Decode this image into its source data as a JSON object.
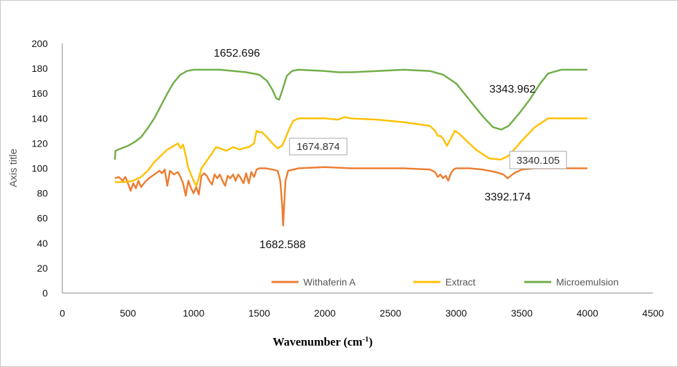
{
  "chart_data": {
    "type": "line",
    "title": "",
    "xlabel": "Wavenumber (cm",
    "xlabel_sup": "-1",
    "xlabel_close": ")",
    "ylabel": "Axis title",
    "xlim": [
      0,
      4500
    ],
    "ylim": [
      0,
      200
    ],
    "x_ticks": [
      "0",
      "500",
      "1000",
      "1500",
      "2000",
      "2500",
      "3000",
      "3500",
      "4000",
      "4500"
    ],
    "y_ticks": [
      "0",
      "20",
      "40",
      "60",
      "80",
      "100",
      "120",
      "140",
      "160",
      "180",
      "200"
    ],
    "grid": false,
    "legend_position": "bottom-right",
    "series": [
      {
        "name": "Withaferin A",
        "color": "#ED7D31",
        "points": [
          [
            400,
            92
          ],
          [
            430,
            93
          ],
          [
            460,
            90
          ],
          [
            480,
            93
          ],
          [
            500,
            88
          ],
          [
            520,
            82
          ],
          [
            540,
            88
          ],
          [
            560,
            84
          ],
          [
            580,
            90
          ],
          [
            600,
            85
          ],
          [
            630,
            89
          ],
          [
            660,
            92
          ],
          [
            700,
            95
          ],
          [
            740,
            98
          ],
          [
            760,
            96
          ],
          [
            780,
            99
          ],
          [
            800,
            86
          ],
          [
            820,
            98
          ],
          [
            850,
            95
          ],
          [
            880,
            97
          ],
          [
            900,
            93
          ],
          [
            920,
            88
          ],
          [
            940,
            78
          ],
          [
            960,
            90
          ],
          [
            980,
            84
          ],
          [
            1000,
            80
          ],
          [
            1020,
            85
          ],
          [
            1040,
            79
          ],
          [
            1060,
            94
          ],
          [
            1080,
            96
          ],
          [
            1100,
            94
          ],
          [
            1120,
            90
          ],
          [
            1140,
            87
          ],
          [
            1160,
            95
          ],
          [
            1180,
            92
          ],
          [
            1200,
            95
          ],
          [
            1220,
            90
          ],
          [
            1240,
            86
          ],
          [
            1260,
            94
          ],
          [
            1280,
            92
          ],
          [
            1300,
            95
          ],
          [
            1320,
            90
          ],
          [
            1340,
            95
          ],
          [
            1360,
            92
          ],
          [
            1380,
            88
          ],
          [
            1400,
            96
          ],
          [
            1420,
            88
          ],
          [
            1440,
            97
          ],
          [
            1460,
            93
          ],
          [
            1480,
            99
          ],
          [
            1500,
            100
          ],
          [
            1550,
            100
          ],
          [
            1600,
            99
          ],
          [
            1640,
            98
          ],
          [
            1660,
            90
          ],
          [
            1675,
            70
          ],
          [
            1682,
            54
          ],
          [
            1690,
            70
          ],
          [
            1700,
            90
          ],
          [
            1720,
            98
          ],
          [
            1800,
            100
          ],
          [
            2000,
            101
          ],
          [
            2200,
            100
          ],
          [
            2400,
            100
          ],
          [
            2600,
            100
          ],
          [
            2800,
            99
          ],
          [
            2840,
            97
          ],
          [
            2860,
            93
          ],
          [
            2880,
            95
          ],
          [
            2900,
            92
          ],
          [
            2920,
            94
          ],
          [
            2940,
            90
          ],
          [
            2960,
            96
          ],
          [
            2980,
            99
          ],
          [
            3000,
            100
          ],
          [
            3100,
            100
          ],
          [
            3200,
            99
          ],
          [
            3300,
            97
          ],
          [
            3360,
            95
          ],
          [
            3392,
            92
          ],
          [
            3440,
            96
          ],
          [
            3500,
            99
          ],
          [
            3600,
            100
          ],
          [
            4000,
            100
          ]
        ]
      },
      {
        "name": "Extract",
        "color": "#FFC000",
        "points": [
          [
            400,
            89
          ],
          [
            480,
            89
          ],
          [
            540,
            90
          ],
          [
            600,
            93
          ],
          [
            650,
            98
          ],
          [
            700,
            105
          ],
          [
            750,
            110
          ],
          [
            800,
            115
          ],
          [
            850,
            118
          ],
          [
            880,
            120
          ],
          [
            900,
            116
          ],
          [
            920,
            119
          ],
          [
            940,
            110
          ],
          [
            960,
            100
          ],
          [
            980,
            95
          ],
          [
            1000,
            90
          ],
          [
            1020,
            86
          ],
          [
            1040,
            92
          ],
          [
            1060,
            100
          ],
          [
            1100,
            106
          ],
          [
            1140,
            112
          ],
          [
            1170,
            117
          ],
          [
            1200,
            116
          ],
          [
            1250,
            114
          ],
          [
            1300,
            117
          ],
          [
            1350,
            115
          ],
          [
            1380,
            116
          ],
          [
            1420,
            117
          ],
          [
            1460,
            120
          ],
          [
            1480,
            130
          ],
          [
            1500,
            129
          ],
          [
            1520,
            129
          ],
          [
            1550,
            126
          ],
          [
            1600,
            120
          ],
          [
            1640,
            116
          ],
          [
            1674,
            118
          ],
          [
            1700,
            124
          ],
          [
            1730,
            132
          ],
          [
            1760,
            138
          ],
          [
            1800,
            140
          ],
          [
            1900,
            140
          ],
          [
            2000,
            140
          ],
          [
            2100,
            139
          ],
          [
            2150,
            141
          ],
          [
            2200,
            140
          ],
          [
            2400,
            139
          ],
          [
            2600,
            137
          ],
          [
            2800,
            134
          ],
          [
            2840,
            130
          ],
          [
            2860,
            126
          ],
          [
            2880,
            126
          ],
          [
            2900,
            124
          ],
          [
            2930,
            118
          ],
          [
            2960,
            124
          ],
          [
            2990,
            130
          ],
          [
            3020,
            128
          ],
          [
            3080,
            122
          ],
          [
            3150,
            115
          ],
          [
            3250,
            108
          ],
          [
            3340,
            107
          ],
          [
            3400,
            110
          ],
          [
            3500,
            122
          ],
          [
            3600,
            133
          ],
          [
            3700,
            140
          ],
          [
            4000,
            140
          ]
        ]
      },
      {
        "name": "Microemulsion",
        "color": "#70AD47",
        "points": [
          [
            400,
            107
          ],
          [
            405,
            114
          ],
          [
            450,
            116
          ],
          [
            500,
            118
          ],
          [
            550,
            121
          ],
          [
            600,
            125
          ],
          [
            650,
            132
          ],
          [
            700,
            140
          ],
          [
            750,
            150
          ],
          [
            800,
            160
          ],
          [
            850,
            169
          ],
          [
            900,
            175
          ],
          [
            950,
            178
          ],
          [
            1000,
            179
          ],
          [
            1200,
            179
          ],
          [
            1400,
            177
          ],
          [
            1500,
            175
          ],
          [
            1560,
            170
          ],
          [
            1600,
            163
          ],
          [
            1630,
            156
          ],
          [
            1652,
            155
          ],
          [
            1680,
            164
          ],
          [
            1710,
            174
          ],
          [
            1750,
            178
          ],
          [
            1800,
            179
          ],
          [
            2000,
            178
          ],
          [
            2100,
            177
          ],
          [
            2200,
            177
          ],
          [
            2400,
            178
          ],
          [
            2600,
            179
          ],
          [
            2800,
            178
          ],
          [
            2900,
            175
          ],
          [
            3000,
            168
          ],
          [
            3100,
            155
          ],
          [
            3200,
            142
          ],
          [
            3280,
            133
          ],
          [
            3343,
            131
          ],
          [
            3400,
            134
          ],
          [
            3480,
            144
          ],
          [
            3560,
            155
          ],
          [
            3640,
            168
          ],
          [
            3700,
            176
          ],
          [
            3800,
            179
          ],
          [
            4000,
            179
          ]
        ]
      }
    ],
    "annotations": [
      {
        "text": "1652.696",
        "boxed": false
      },
      {
        "text": "3343.962",
        "boxed": false
      },
      {
        "text": "1674.874",
        "boxed": true
      },
      {
        "text": "3340.105",
        "boxed": true
      },
      {
        "text": "3392.174",
        "boxed": false
      },
      {
        "text": "1682.588",
        "boxed": false
      }
    ]
  }
}
